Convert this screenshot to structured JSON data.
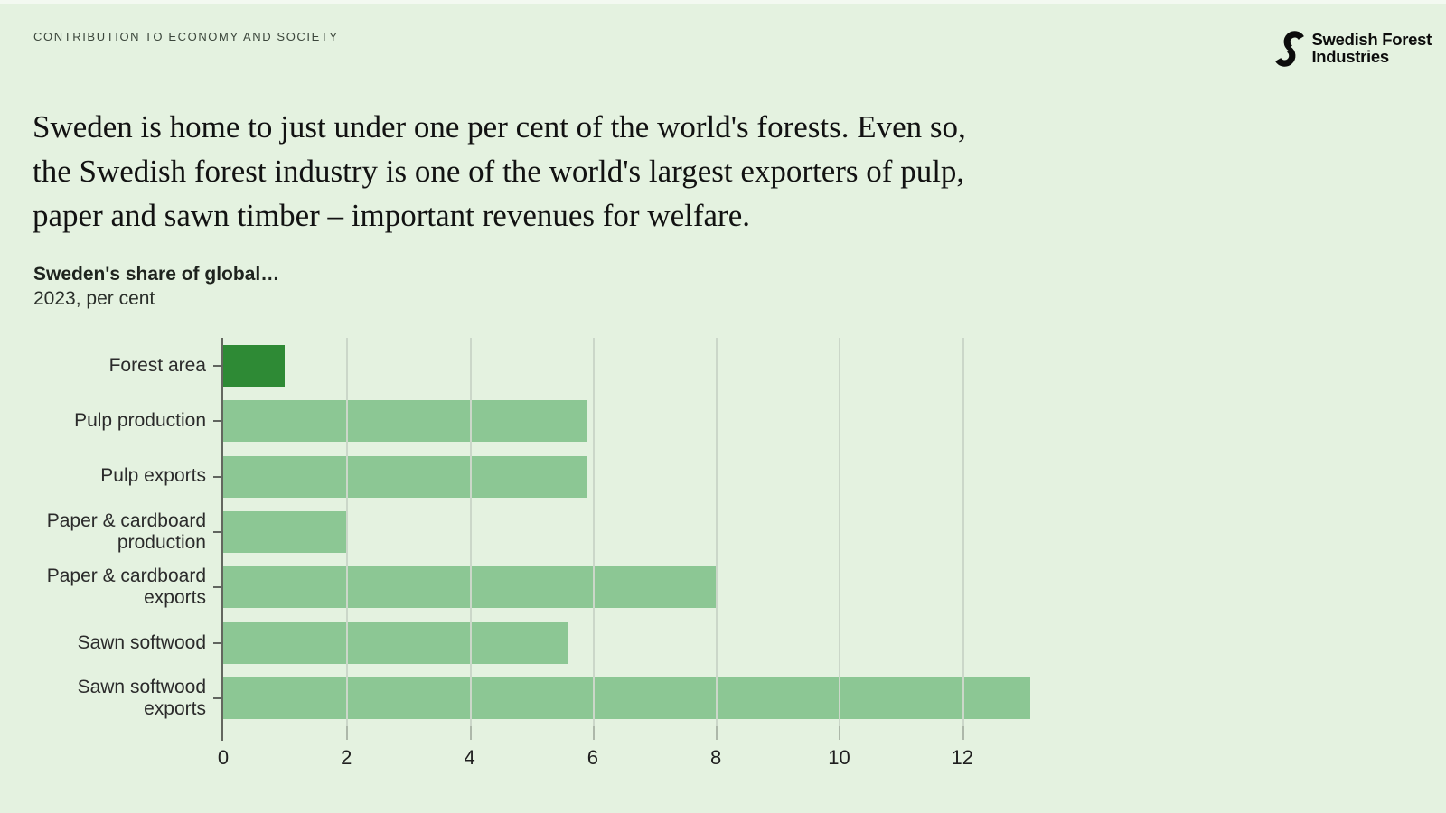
{
  "header": {
    "eyebrow": "CONTRIBUTION TO ECONOMY AND SOCIETY",
    "logo": {
      "icon": "s-monogram-icon",
      "line1": "Swedish Forest",
      "line2": "Industries"
    }
  },
  "headline": {
    "lines": [
      "Sweden is home to just under one per cent of the world's forests. Even so,",
      "the Swedish forest industry is one of the world's largest exporters of pulp,",
      "paper and sawn timber – important revenues for welfare."
    ]
  },
  "chart_data": {
    "type": "bar",
    "orientation": "horizontal",
    "title": "Sweden's share of global…",
    "subtitle": "2023, per cent",
    "categories": [
      "Forest area",
      "Pulp production",
      "Pulp exports",
      "Paper & cardboard production",
      "Paper & cardboard exports",
      "Sawn softwood",
      "Sawn softwood exports"
    ],
    "values": [
      1.0,
      5.9,
      5.9,
      2.0,
      8.0,
      5.6,
      13.1
    ],
    "xlabel": "",
    "ylabel": "",
    "xlim": [
      0,
      13.5
    ],
    "xticks": [
      0,
      2,
      4,
      6,
      8,
      10,
      12
    ],
    "grid": "vertical-on",
    "legend": "none",
    "bar_color_default": "#8cc794",
    "bar_color_highlight": "#2e8a35",
    "highlight_index": 0
  },
  "colors": {
    "background": "#e4f2e0",
    "gridline": "#cbd7c9",
    "axis": "#63675f",
    "text_dark": "#1f1f1f"
  }
}
